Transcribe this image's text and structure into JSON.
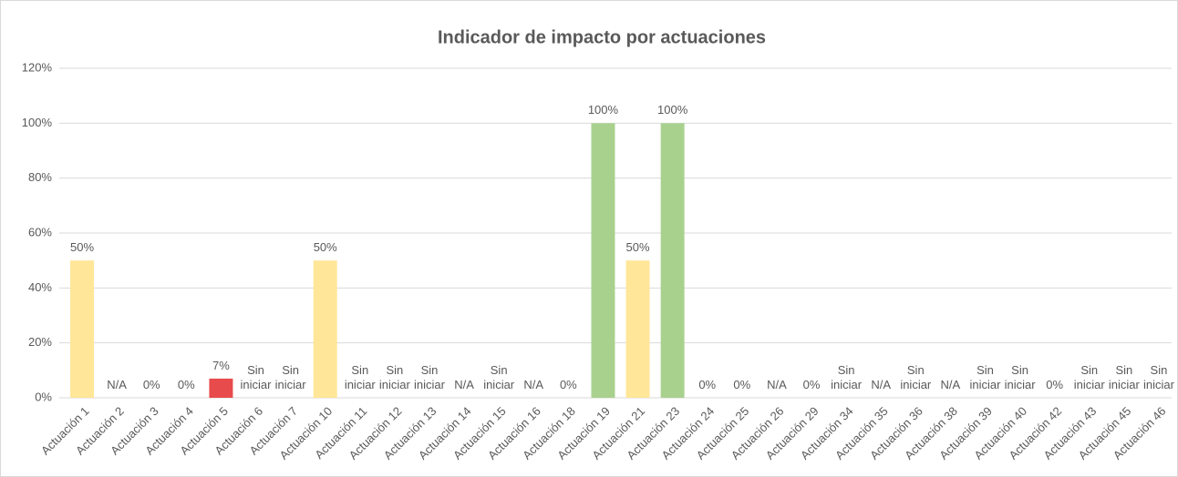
{
  "chart_data": {
    "type": "bar",
    "title": "Indicador de impacto por actuaciones",
    "categories": [
      "Actuación 1",
      "Actuación 2",
      "Actuación 3",
      "Actuación 4",
      "Actuación 5",
      "Actuación 6",
      "Actuación 7",
      "Actuación 10",
      "Actuación 11",
      "Actuación 12",
      "Actuación 13",
      "Actuación 14",
      "Actuación 15",
      "Actuación 16",
      "Actuación 18",
      "Actuación 19",
      "Actuación 21",
      "Actuación 23",
      "Actuación 24",
      "Actuación 25",
      "Actuación 26",
      "Actuación 29",
      "Actuación 34",
      "Actuación 35",
      "Actuación 36",
      "Actuación 38",
      "Actuación 39",
      "Actuación 40",
      "Actuación 42",
      "Actuación 43",
      "Actuación 45",
      "Actuación 46"
    ],
    "values": [
      50,
      null,
      0,
      0,
      7,
      null,
      null,
      50,
      null,
      null,
      null,
      null,
      null,
      null,
      0,
      100,
      50,
      100,
      0,
      0,
      null,
      0,
      null,
      null,
      null,
      null,
      null,
      null,
      0,
      null,
      null,
      null
    ],
    "value_labels": [
      "50%",
      "N/A",
      "0%",
      "0%",
      "7%",
      "Sin iniciar",
      "Sin iniciar",
      "50%",
      "Sin iniciar",
      "Sin iniciar",
      "Sin iniciar",
      "N/A",
      "Sin iniciar",
      "N/A",
      "0%",
      "100%",
      "50%",
      "100%",
      "0%",
      "0%",
      "N/A",
      "0%",
      "Sin iniciar",
      "N/A",
      "Sin iniciar",
      "N/A",
      "Sin iniciar",
      "Sin iniciar",
      "0%",
      "Sin iniciar",
      "Sin iniciar",
      "Sin iniciar"
    ],
    "colors": [
      "#ffe699",
      null,
      "#ffe699",
      "#ffe699",
      "#e84b4b",
      null,
      null,
      "#ffe699",
      null,
      null,
      null,
      null,
      null,
      null,
      "#ffe699",
      "#a9d18e",
      "#ffe699",
      "#a9d18e",
      "#ffe699",
      "#ffe699",
      null,
      "#ffe699",
      null,
      null,
      null,
      null,
      null,
      null,
      "#ffe699",
      null,
      null,
      null
    ],
    "ylim": [
      0,
      120
    ],
    "yticks": [
      {
        "value": 0,
        "label": "0%"
      },
      {
        "value": 20,
        "label": "20%"
      },
      {
        "value": 40,
        "label": "40%"
      },
      {
        "value": 60,
        "label": "60%"
      },
      {
        "value": 80,
        "label": "80%"
      },
      {
        "value": 100,
        "label": "100%"
      },
      {
        "value": 120,
        "label": "120%"
      }
    ],
    "grid": true
  }
}
